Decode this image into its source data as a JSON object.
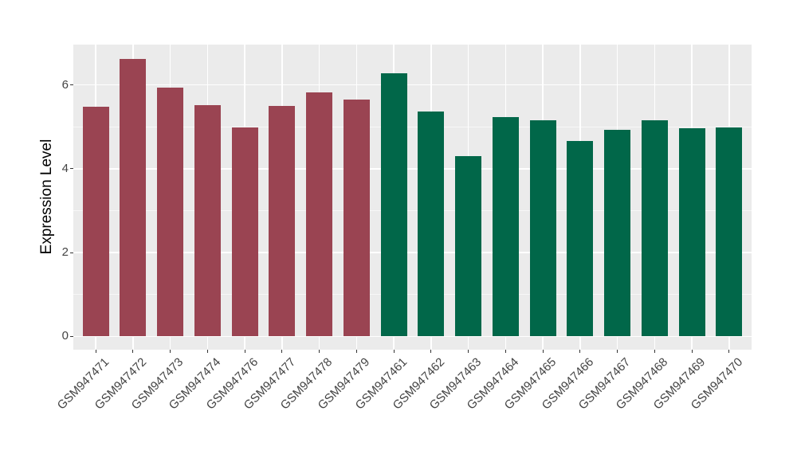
{
  "chart_data": {
    "type": "bar",
    "title": "",
    "xlabel": "",
    "ylabel": "Expression Level",
    "categories": [
      "GSM947471",
      "GSM947472",
      "GSM947473",
      "GSM947474",
      "GSM947476",
      "GSM947477",
      "GSM947478",
      "GSM947479",
      "GSM947461",
      "GSM947462",
      "GSM947463",
      "GSM947464",
      "GSM947465",
      "GSM947466",
      "GSM947467",
      "GSM947468",
      "GSM947469",
      "GSM947470"
    ],
    "values": [
      5.48,
      6.62,
      5.94,
      5.52,
      4.98,
      5.49,
      5.83,
      5.66,
      6.27,
      5.37,
      4.3,
      5.24,
      5.16,
      4.66,
      4.92,
      5.16,
      4.96,
      4.99
    ],
    "bar_group": [
      0,
      0,
      0,
      0,
      0,
      0,
      0,
      0,
      1,
      1,
      1,
      1,
      1,
      1,
      1,
      1,
      1,
      1
    ],
    "group_colors": [
      "#9A4452",
      "#016749"
    ],
    "ytick_labels": [
      "0",
      "2",
      "4",
      "6"
    ],
    "ytick_values": [
      0,
      2,
      4,
      6
    ],
    "ytick_minor_values": [
      1,
      3,
      5
    ],
    "ylim": [
      0,
      6.62
    ],
    "legend": "none",
    "grid": "major+minor",
    "colors": {
      "panel_background": "#EBEBEB",
      "figure_background": "#FFFFFF",
      "grid_line": "#FFFFFF",
      "tick_text": "#444444",
      "axis_title_text": "#000000",
      "tick_mark": "#333333"
    }
  }
}
